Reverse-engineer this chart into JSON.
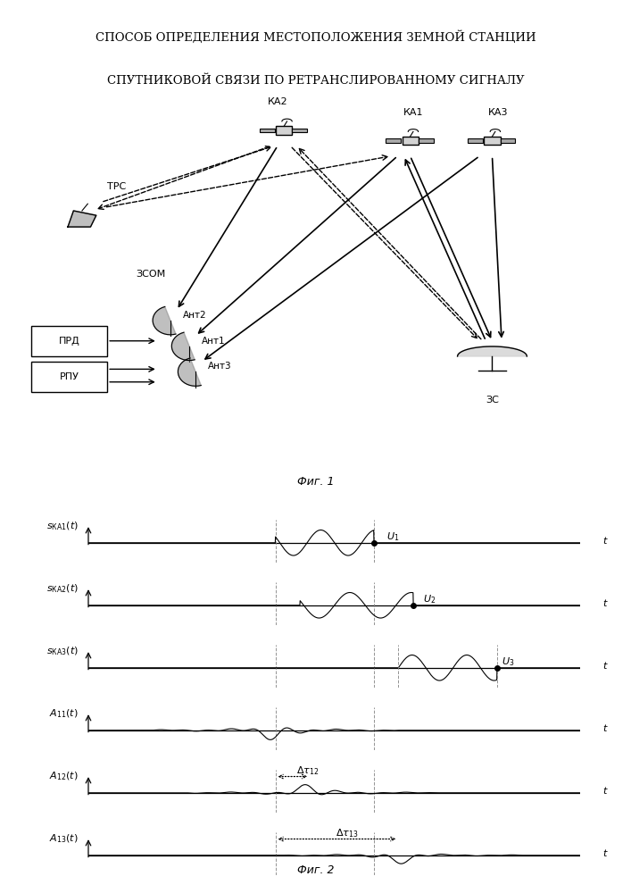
{
  "title_line1": "СПОСОБ ОПРЕДЕЛЕНИЯ МЕСТОПОЛОЖЕНИЯ ЗЕМНОЙ СТАНЦИИ",
  "title_line2": "СПУТНИКОВОЙ СВЯЗИ ПО РЕТРАНСЛИРОВАННОМУ СИГНАЛУ",
  "fig1_caption": "Фиг. 1",
  "fig2_caption": "Фиг. 2",
  "background_color": "#ffffff",
  "line_color": "#000000",
  "gray_color": "#888888"
}
